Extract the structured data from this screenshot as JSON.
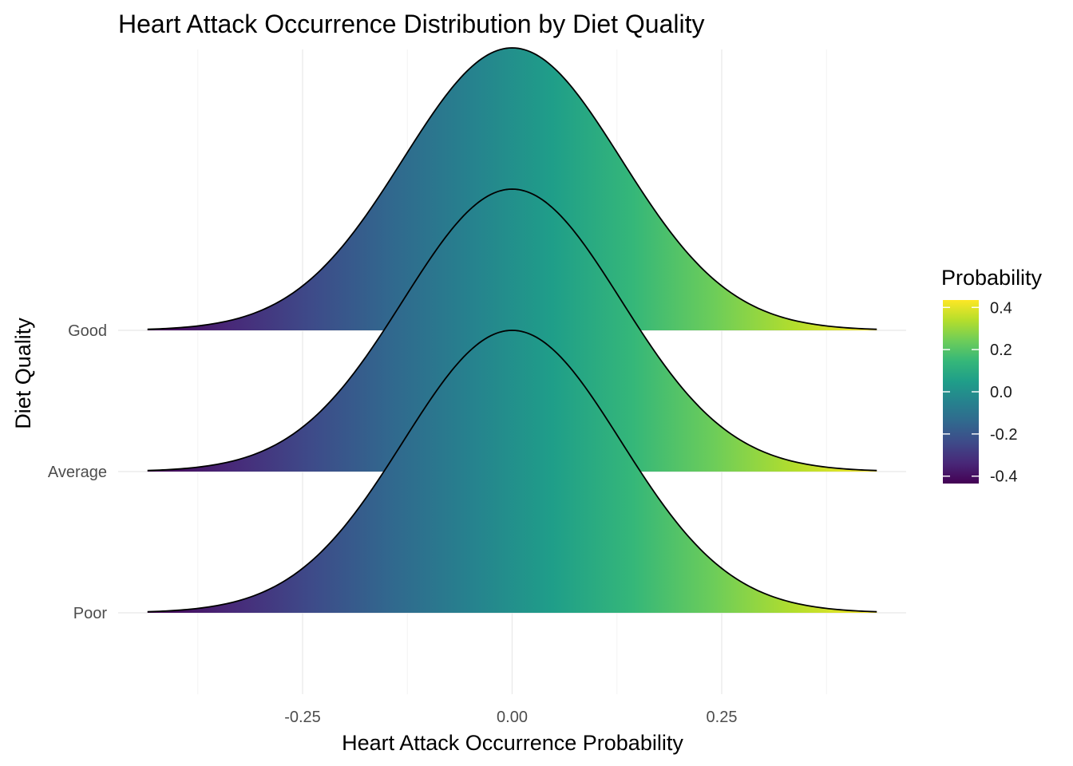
{
  "chart_data": {
    "type": "area",
    "subtype": "density-ridgeline",
    "title": "Heart Attack Occurrence Distribution by Diet Quality",
    "xlabel": "Heart Attack Occurrence Probability",
    "ylabel": "Diet Quality",
    "categories": [
      "Poor",
      "Average",
      "Good"
    ],
    "x_ticks": [
      -0.25,
      0.0,
      0.25
    ],
    "x_tick_labels": [
      "-0.25",
      "0.00",
      "0.25"
    ],
    "xlim": [
      -0.47,
      0.47
    ],
    "x_range_drawn": [
      -0.435,
      0.435
    ],
    "series": [
      {
        "category": "Poor",
        "mean": 0.0,
        "sd": 0.13,
        "x_min": -0.435,
        "x_max": 0.435
      },
      {
        "category": "Average",
        "mean": 0.0,
        "sd": 0.13,
        "x_min": -0.435,
        "x_max": 0.435
      },
      {
        "category": "Good",
        "mean": 0.0,
        "sd": 0.13,
        "x_min": -0.435,
        "x_max": 0.435
      }
    ],
    "fill": {
      "variable": "x",
      "palette": "viridis",
      "range": [
        -0.435,
        0.435
      ]
    },
    "grid": true,
    "legend": {
      "title": "Probability",
      "position": "right",
      "ticks": [
        0.4,
        0.2,
        0.0,
        -0.2,
        -0.4
      ],
      "tick_labels": [
        "0.4",
        "0.2",
        "0.0",
        "-0.2",
        "-0.4"
      ],
      "range": [
        -0.435,
        0.435
      ]
    },
    "colors": {
      "viridis": [
        "#440154",
        "#482878",
        "#3E4A89",
        "#31688E",
        "#26828E",
        "#1F9E89",
        "#35B779",
        "#6DCD59",
        "#B4DE2C",
        "#FDE725"
      ],
      "outline": "#000000",
      "grid": "#ebebeb"
    }
  }
}
